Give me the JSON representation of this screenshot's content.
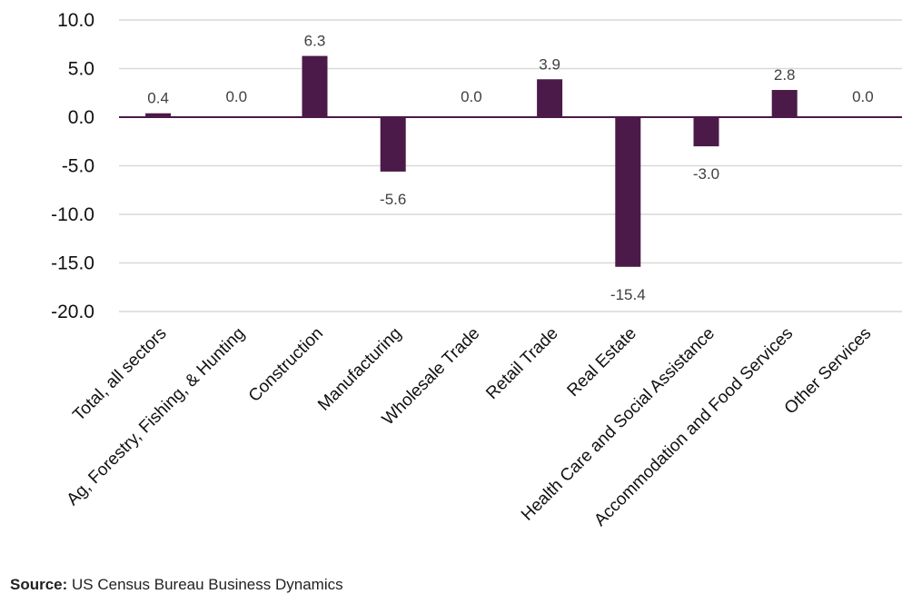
{
  "chart_data": {
    "type": "bar",
    "categories": [
      "Total, all sectors",
      "Ag, Forestry, Fishing, & Hunting",
      "Construction",
      "Manufacturing",
      "Wholesale Trade",
      "Retail Trade",
      "Real Estate",
      "Health Care and Social Assistance",
      "Accommodation and Food Services",
      "Other Services"
    ],
    "values": [
      0.4,
      0.0,
      6.3,
      -5.6,
      0.0,
      3.9,
      -15.4,
      -3.0,
      2.8,
      0.0
    ],
    "data_labels": [
      "0.4",
      "0.0",
      "6.3",
      "-5.6",
      "0.0",
      "3.9",
      "-15.4",
      "-3.0",
      "2.8",
      "0.0"
    ],
    "ylim": [
      -20,
      10
    ],
    "yticks": [
      10,
      5,
      0,
      -5,
      -10,
      -15,
      -20
    ],
    "ytick_labels": [
      "10.0",
      "5.0",
      "0.0",
      "-5.0",
      "-10.0",
      "-15.0",
      "-20.0"
    ],
    "grid": true,
    "bar_color": "#4b1a48",
    "axis_color": "#4b1a48",
    "grid_color": "#d9d9d9"
  },
  "source": {
    "label": "Source:",
    "text": "US Census Bureau Business Dynamics"
  }
}
